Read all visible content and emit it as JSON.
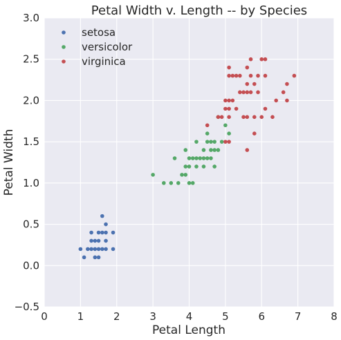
{
  "chart_data": {
    "type": "scatter",
    "title": "Petal Width v. Length -- by Species",
    "xlabel": "Petal Length",
    "ylabel": "Petal Width",
    "xlim": [
      0,
      8
    ],
    "ylim": [
      -0.5,
      3.0
    ],
    "x_ticks": [
      "0",
      "1",
      "2",
      "3",
      "4",
      "5",
      "6",
      "7",
      "8"
    ],
    "y_ticks": [
      "−0.5",
      "0.0",
      "0.5",
      "1.0",
      "1.5",
      "2.0",
      "2.5",
      "3.0"
    ],
    "grid": true,
    "legend_position": "top-left",
    "background_color": "#eaeaf2",
    "series": [
      {
        "name": "setosa",
        "color": "#4c72b0",
        "points": [
          [
            1.0,
            0.2
          ],
          [
            1.1,
            0.1
          ],
          [
            1.2,
            0.2
          ],
          [
            1.3,
            0.2
          ],
          [
            1.3,
            0.3
          ],
          [
            1.3,
            0.4
          ],
          [
            1.4,
            0.1
          ],
          [
            1.4,
            0.2
          ],
          [
            1.4,
            0.3
          ],
          [
            1.5,
            0.1
          ],
          [
            1.5,
            0.2
          ],
          [
            1.5,
            0.3
          ],
          [
            1.5,
            0.4
          ],
          [
            1.6,
            0.2
          ],
          [
            1.6,
            0.4
          ],
          [
            1.6,
            0.6
          ],
          [
            1.7,
            0.2
          ],
          [
            1.7,
            0.3
          ],
          [
            1.7,
            0.4
          ],
          [
            1.7,
            0.5
          ],
          [
            1.9,
            0.2
          ],
          [
            1.9,
            0.4
          ]
        ]
      },
      {
        "name": "versicolor",
        "color": "#55a868",
        "points": [
          [
            3.0,
            1.1
          ],
          [
            3.3,
            1.0
          ],
          [
            3.5,
            1.0
          ],
          [
            3.6,
            1.3
          ],
          [
            3.7,
            1.0
          ],
          [
            3.8,
            1.1
          ],
          [
            3.9,
            1.1
          ],
          [
            3.9,
            1.2
          ],
          [
            3.9,
            1.4
          ],
          [
            4.0,
            1.0
          ],
          [
            4.0,
            1.2
          ],
          [
            4.0,
            1.3
          ],
          [
            4.1,
            1.0
          ],
          [
            4.1,
            1.3
          ],
          [
            4.2,
            1.2
          ],
          [
            4.2,
            1.3
          ],
          [
            4.2,
            1.5
          ],
          [
            4.3,
            1.3
          ],
          [
            4.4,
            1.2
          ],
          [
            4.4,
            1.3
          ],
          [
            4.4,
            1.4
          ],
          [
            4.5,
            1.3
          ],
          [
            4.5,
            1.5
          ],
          [
            4.5,
            1.6
          ],
          [
            4.6,
            1.3
          ],
          [
            4.6,
            1.4
          ],
          [
            4.6,
            1.5
          ],
          [
            4.7,
            1.2
          ],
          [
            4.7,
            1.4
          ],
          [
            4.7,
            1.5
          ],
          [
            4.8,
            1.4
          ],
          [
            4.8,
            1.8
          ],
          [
            4.9,
            1.5
          ],
          [
            5.0,
            1.7
          ],
          [
            5.1,
            1.6
          ]
        ]
      },
      {
        "name": "virginica",
        "color": "#c44e52",
        "points": [
          [
            4.5,
            1.7
          ],
          [
            4.8,
            1.8
          ],
          [
            4.9,
            1.8
          ],
          [
            5.0,
            1.5
          ],
          [
            5.0,
            1.9
          ],
          [
            5.0,
            2.0
          ],
          [
            5.1,
            1.5
          ],
          [
            5.1,
            1.8
          ],
          [
            5.1,
            1.9
          ],
          [
            5.1,
            2.0
          ],
          [
            5.1,
            2.3
          ],
          [
            5.1,
            2.4
          ],
          [
            5.2,
            2.0
          ],
          [
            5.2,
            2.3
          ],
          [
            5.3,
            1.9
          ],
          [
            5.3,
            2.3
          ],
          [
            5.4,
            2.1
          ],
          [
            5.4,
            2.3
          ],
          [
            5.5,
            1.8
          ],
          [
            5.5,
            2.1
          ],
          [
            5.6,
            1.4
          ],
          [
            5.6,
            1.8
          ],
          [
            5.6,
            2.1
          ],
          [
            5.6,
            2.2
          ],
          [
            5.6,
            2.4
          ],
          [
            5.7,
            2.1
          ],
          [
            5.7,
            2.3
          ],
          [
            5.7,
            2.5
          ],
          [
            5.8,
            1.6
          ],
          [
            5.8,
            1.8
          ],
          [
            5.8,
            2.2
          ],
          [
            5.9,
            2.1
          ],
          [
            5.9,
            2.3
          ],
          [
            6.0,
            1.8
          ],
          [
            6.0,
            2.5
          ],
          [
            6.1,
            1.9
          ],
          [
            6.1,
            2.3
          ],
          [
            6.1,
            2.5
          ],
          [
            6.3,
            1.8
          ],
          [
            6.4,
            2.0
          ],
          [
            6.6,
            2.1
          ],
          [
            6.7,
            2.0
          ],
          [
            6.7,
            2.2
          ],
          [
            6.9,
            2.3
          ]
        ]
      }
    ]
  }
}
